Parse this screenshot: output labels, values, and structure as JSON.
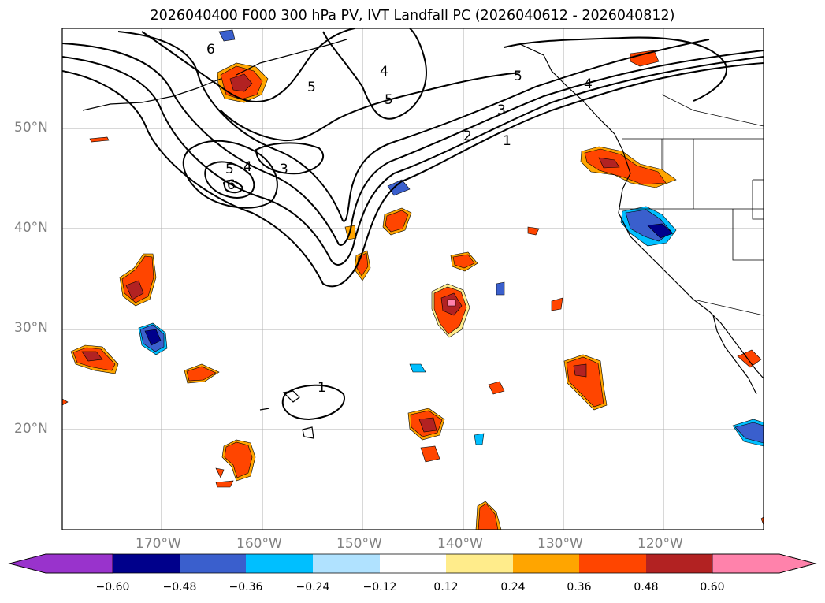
{
  "title": "2026040400 F000 300 hPa PV, IVT Landfall PC (2026040612 - 2026040812)",
  "lat_labels": [
    "50°N",
    "40°N",
    "30°N",
    "20°N"
  ],
  "lon_labels": [
    "170°W",
    "160°W",
    "150°W",
    "140°W",
    "130°W",
    "120°W"
  ],
  "contour_labels": [
    "6",
    "5",
    "4",
    "5",
    "4",
    "3",
    "2",
    "1",
    "5",
    "4",
    "3",
    "6",
    "1"
  ],
  "colorbar": {
    "ticks": [
      "−0.60",
      "−0.48",
      "−0.36",
      "−0.24",
      "−0.12",
      "0.12",
      "0.24",
      "0.36",
      "0.48",
      "0.60"
    ],
    "colors": [
      "#9933cc",
      "#00008b",
      "#3a5fcd",
      "#00bfff",
      "#b0e2ff",
      "#ffffff",
      "#ffec8b",
      "#ffa500",
      "#ff4500",
      "#b22222",
      "#ff82ab"
    ]
  }
}
